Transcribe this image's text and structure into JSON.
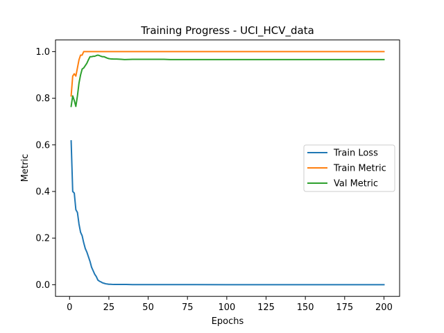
{
  "chart_data": {
    "type": "line",
    "title": "Training Progress - UCI_HCV_data",
    "xlabel": "Epochs",
    "ylabel": "Metric",
    "xlim": [
      -8.95,
      209.95
    ],
    "ylim": [
      -0.05,
      1.05
    ],
    "xticks": [
      0,
      25,
      50,
      75,
      100,
      125,
      150,
      175,
      200
    ],
    "yticks": [
      0.0,
      0.2,
      0.4,
      0.6,
      0.8,
      1.0
    ],
    "xtick_labels": [
      "0",
      "25",
      "50",
      "75",
      "100",
      "125",
      "150",
      "175",
      "200"
    ],
    "ytick_labels": [
      "0.0",
      "0.2",
      "0.4",
      "0.6",
      "0.8",
      "1.0"
    ],
    "grid": false,
    "legend_position": "center-right",
    "series": [
      {
        "name": "Train Loss",
        "color": "#1f77b4",
        "x": [
          1,
          2,
          3,
          4,
          5,
          6,
          7,
          8,
          9,
          10,
          11,
          12,
          13,
          14,
          15,
          16,
          17,
          18,
          19,
          20,
          21,
          22,
          23,
          24,
          25,
          26,
          28,
          30,
          33,
          36,
          40,
          50,
          60,
          80,
          100,
          120,
          150,
          175,
          200
        ],
        "y": [
          0.617,
          0.4,
          0.393,
          0.322,
          0.31,
          0.26,
          0.225,
          0.21,
          0.18,
          0.155,
          0.14,
          0.12,
          0.1,
          0.075,
          0.06,
          0.045,
          0.035,
          0.02,
          0.015,
          0.012,
          0.008,
          0.006,
          0.004,
          0.003,
          0.002,
          0.002,
          0.001,
          0.001,
          0.001,
          0.001,
          0.0005,
          0.0005,
          0.0004,
          0.0003,
          0.0002,
          0.0002,
          0.0001,
          0.0001,
          0.0001
        ]
      },
      {
        "name": "Train Metric",
        "color": "#ff7f0e",
        "x": [
          1,
          2,
          3,
          4,
          5,
          6,
          7,
          8,
          9,
          10,
          11,
          12,
          15,
          20,
          50,
          100,
          150,
          200
        ],
        "y": [
          0.81,
          0.895,
          0.905,
          0.895,
          0.93,
          0.965,
          0.985,
          0.985,
          1.0,
          1.0,
          1.0,
          1.0,
          1.0,
          1.0,
          1.0,
          1.0,
          1.0,
          1.0
        ]
      },
      {
        "name": "Val Metric",
        "color": "#2ca02c",
        "x": [
          1,
          2,
          3,
          4,
          5,
          6,
          7,
          8,
          9,
          10,
          11,
          12,
          13,
          14,
          15,
          16,
          17,
          18,
          19,
          20,
          21,
          22,
          23,
          24,
          25,
          26,
          28,
          30,
          33,
          35,
          40,
          50,
          60,
          64,
          70,
          100,
          150,
          200
        ],
        "y": [
          0.765,
          0.81,
          0.79,
          0.765,
          0.81,
          0.865,
          0.9,
          0.925,
          0.93,
          0.94,
          0.95,
          0.965,
          0.978,
          0.978,
          0.98,
          0.98,
          0.983,
          0.985,
          0.983,
          0.98,
          0.978,
          0.978,
          0.975,
          0.972,
          0.97,
          0.969,
          0.968,
          0.968,
          0.967,
          0.966,
          0.967,
          0.967,
          0.967,
          0.966,
          0.966,
          0.966,
          0.966,
          0.966
        ]
      }
    ]
  }
}
